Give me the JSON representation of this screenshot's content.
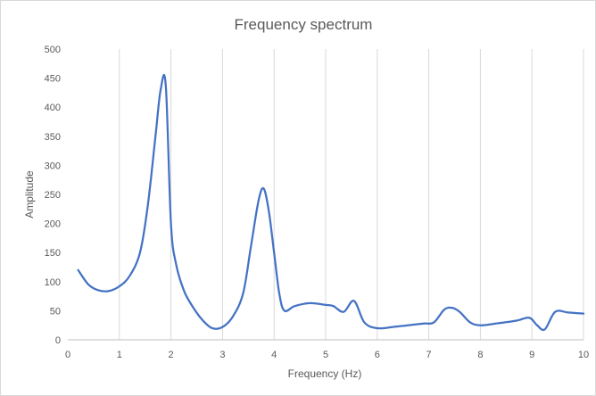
{
  "chart_data": {
    "type": "line",
    "title": "Frequency spectrum",
    "xlabel": "Frequency (Hz)",
    "ylabel": "Amplitude",
    "xlim": [
      0,
      10
    ],
    "ylim": [
      0,
      500
    ],
    "x_ticks": [
      0,
      1,
      2,
      3,
      4,
      5,
      6,
      7,
      8,
      9,
      10
    ],
    "y_ticks": [
      0,
      50,
      100,
      150,
      200,
      250,
      300,
      350,
      400,
      450,
      500
    ],
    "grid": "vertical",
    "legend": "none",
    "line_color": "#4472c4",
    "series": [
      {
        "x": [
          0.2,
          0.4,
          0.6,
          0.8,
          1.0,
          1.2,
          1.4,
          1.55,
          1.7,
          1.8,
          1.9,
          2.0,
          2.1,
          2.25,
          2.4,
          2.6,
          2.8,
          3.0,
          3.2,
          3.4,
          3.55,
          3.7,
          3.8,
          3.9,
          4.0,
          4.1,
          4.2,
          4.4,
          4.7,
          5.0,
          5.15,
          5.35,
          5.55,
          5.75,
          6.0,
          6.3,
          6.6,
          6.9,
          7.1,
          7.3,
          7.45,
          7.6,
          7.8,
          8.0,
          8.3,
          8.7,
          8.95,
          9.1,
          9.25,
          9.45,
          9.7,
          10.0
        ],
        "y": [
          120,
          95,
          85,
          84,
          92,
          110,
          150,
          230,
          350,
          430,
          437,
          200,
          130,
          85,
          60,
          35,
          20,
          22,
          40,
          80,
          160,
          240,
          260,
          220,
          150,
          80,
          50,
          58,
          63,
          60,
          58,
          48,
          67,
          30,
          20,
          22,
          25,
          28,
          30,
          52,
          55,
          48,
          30,
          25,
          28,
          33,
          38,
          25,
          18,
          48,
          47,
          45
        ]
      }
    ]
  }
}
